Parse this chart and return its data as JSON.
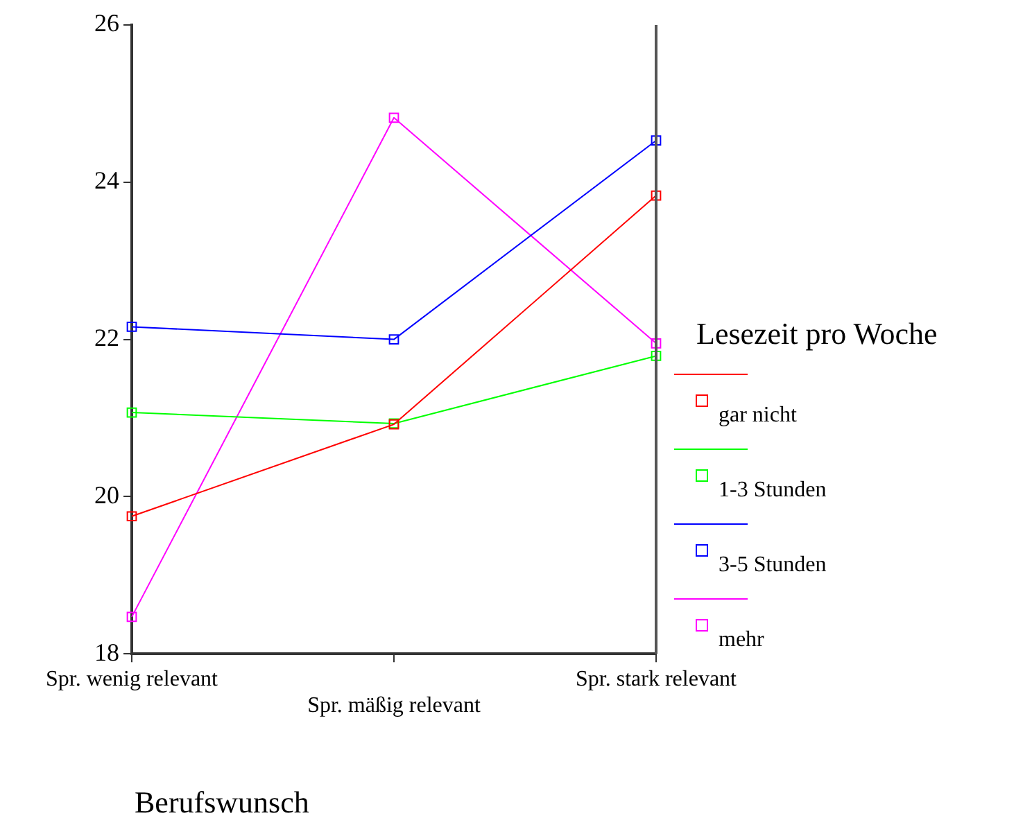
{
  "chart_data": {
    "type": "line",
    "xlabel": "Berufswunsch",
    "legend_title": "Lesezeit pro Woche",
    "categories": [
      "Spr. wenig relevant",
      "Spr. mäßig relevant",
      "Spr. stark relevant"
    ],
    "series": [
      {
        "name": "gar nicht",
        "color": "#ff0000",
        "values": [
          19.75,
          20.92,
          23.83
        ]
      },
      {
        "name": "1-3 Stunden",
        "color": "#00ff00",
        "values": [
          21.07,
          20.93,
          21.79
        ]
      },
      {
        "name": "3-5 Stunden",
        "color": "#0000ff",
        "values": [
          22.16,
          22.0,
          24.53
        ]
      },
      {
        "name": "mehr",
        "color": "#ff00ff",
        "values": [
          18.47,
          24.82,
          21.95
        ]
      }
    ],
    "ylim": [
      18,
      26
    ],
    "yticks": [
      18,
      20,
      22,
      24,
      26
    ],
    "grid": false,
    "legend": "right",
    "marker": "square",
    "line_style": "solid"
  }
}
